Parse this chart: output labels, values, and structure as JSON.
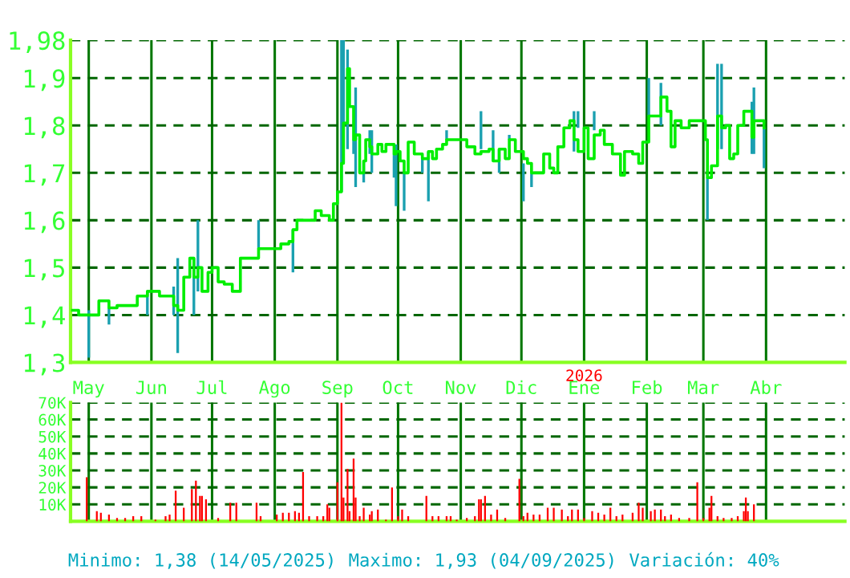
{
  "chart_data": [
    {
      "type": "step",
      "xlim": [
        "2025-04-22",
        "2026-05-10"
      ],
      "ylim": [
        1.3,
        1.98
      ],
      "grid": true,
      "marker": "none",
      "xticks": [
        {
          "value": "2025-05-01",
          "label": "May"
        },
        {
          "value": "2025-06-01",
          "label": "Jun"
        },
        {
          "value": "2025-07-01",
          "label": "Jul"
        },
        {
          "value": "2025-08-01",
          "label": "Ago"
        },
        {
          "value": "2025-09-01",
          "label": "Sep"
        },
        {
          "value": "2025-10-01",
          "label": "Oct"
        },
        {
          "value": "2025-11-01",
          "label": "Nov"
        },
        {
          "value": "2025-12-01",
          "label": "Dic"
        },
        {
          "value": "2026-01-01",
          "label": "Ene"
        },
        {
          "value": "2026-02-01",
          "label": "Feb"
        },
        {
          "value": "2026-03-01",
          "label": "Mar"
        },
        {
          "value": "2026-04-01",
          "label": "Abr"
        }
      ],
      "yticks": [
        {
          "value": 1.3,
          "label": "1,3"
        },
        {
          "value": 1.4,
          "label": "1,4"
        },
        {
          "value": 1.5,
          "label": "1,5"
        },
        {
          "value": 1.6,
          "label": "1,6"
        },
        {
          "value": 1.7,
          "label": "1,7"
        },
        {
          "value": 1.8,
          "label": "1,8"
        },
        {
          "value": 1.9,
          "label": "1,9"
        },
        {
          "value": 1.98,
          "label": "1,98"
        }
      ],
      "annotations": [
        "2026"
      ],
      "x": [
        "2025-04-23",
        "2025-04-26",
        "2025-05-01",
        "2025-05-06",
        "2025-05-11",
        "2025-05-15",
        "2025-05-18",
        "2025-05-23",
        "2025-05-25",
        "2025-05-30",
        "2025-06-05",
        "2025-06-09",
        "2025-06-12",
        "2025-06-14",
        "2025-06-17",
        "2025-06-20",
        "2025-06-22",
        "2025-06-24",
        "2025-06-26",
        "2025-06-29",
        "2025-07-01",
        "2025-07-04",
        "2025-07-07",
        "2025-07-11",
        "2025-07-15",
        "2025-07-20",
        "2025-07-24",
        "2025-07-30",
        "2025-08-04",
        "2025-08-08",
        "2025-08-10",
        "2025-08-12",
        "2025-08-16",
        "2025-08-21",
        "2025-08-24",
        "2025-08-28",
        "2025-08-30",
        "2025-09-01",
        "2025-09-03",
        "2025-09-04",
        "2025-09-06",
        "2025-09-07",
        "2025-09-09",
        "2025-09-10",
        "2025-09-12",
        "2025-09-14",
        "2025-09-15",
        "2025-09-17",
        "2025-09-18",
        "2025-09-21",
        "2025-09-23",
        "2025-09-25",
        "2025-09-29",
        "2025-09-30",
        "2025-10-02",
        "2025-10-04",
        "2025-10-06",
        "2025-10-09",
        "2025-10-11",
        "2025-10-13",
        "2025-10-16",
        "2025-10-18",
        "2025-10-20",
        "2025-10-23",
        "2025-10-25",
        "2025-10-27",
        "2025-10-30",
        "2025-10-31",
        "2025-11-04",
        "2025-11-08",
        "2025-11-11",
        "2025-11-15",
        "2025-11-17",
        "2025-11-20",
        "2025-11-23",
        "2025-11-25",
        "2025-11-28",
        "2025-12-02",
        "2025-12-04",
        "2025-12-06",
        "2025-12-09",
        "2025-12-12",
        "2025-12-15",
        "2025-12-17",
        "2025-12-19",
        "2025-12-22",
        "2025-12-25",
        "2025-12-27",
        "2025-12-29",
        "2026-01-01",
        "2026-01-03",
        "2026-01-06",
        "2026-01-09",
        "2026-01-11",
        "2026-01-15",
        "2026-01-19",
        "2026-01-21",
        "2026-01-25",
        "2026-01-28",
        "2026-01-30",
        "2026-02-02",
        "2026-02-05",
        "2026-02-08",
        "2026-02-11",
        "2026-02-13",
        "2026-02-15",
        "2026-02-18",
        "2026-02-22",
        "2026-02-26",
        "2026-03-01",
        "2026-03-02",
        "2026-03-03",
        "2026-03-05",
        "2026-03-08",
        "2026-03-10",
        "2026-03-12",
        "2026-03-14",
        "2026-03-16",
        "2026-03-18",
        "2026-03-21",
        "2026-03-23",
        "2026-03-25",
        "2026-03-26",
        "2026-03-29",
        "2026-03-31"
      ],
      "series": [
        {
          "color": "#00ee00",
          "values": [
            1.41,
            1.4,
            1.4,
            1.43,
            1.415,
            1.42,
            1.42,
            1.42,
            1.44,
            1.45,
            1.44,
            1.44,
            1.42,
            1.41,
            1.48,
            1.52,
            1.48,
            1.5,
            1.45,
            1.49,
            1.5,
            1.47,
            1.465,
            1.45,
            1.52,
            1.52,
            1.54,
            1.54,
            1.55,
            1.555,
            1.58,
            1.6,
            1.6,
            1.62,
            1.61,
            1.6,
            1.635,
            1.66,
            1.72,
            1.805,
            1.92,
            1.84,
            1.77,
            1.78,
            1.7,
            1.725,
            1.77,
            1.755,
            1.74,
            1.76,
            1.745,
            1.76,
            1.74,
            1.745,
            1.725,
            1.7,
            1.765,
            1.74,
            1.74,
            1.73,
            1.745,
            1.73,
            1.75,
            1.76,
            1.77,
            1.77,
            1.77,
            1.77,
            1.755,
            1.74,
            1.745,
            1.75,
            1.725,
            1.75,
            1.73,
            1.77,
            1.745,
            1.73,
            1.72,
            1.7,
            1.7,
            1.74,
            1.71,
            1.7,
            1.755,
            1.795,
            1.81,
            1.77,
            1.745,
            1.795,
            1.73,
            1.78,
            1.79,
            1.76,
            1.74,
            1.695,
            1.745,
            1.74,
            1.72,
            1.765,
            1.82,
            1.82,
            1.86,
            1.83,
            1.755,
            1.81,
            1.795,
            1.81,
            1.81,
            1.81,
            1.77,
            1.69,
            1.715,
            1.82,
            1.795,
            1.8,
            1.73,
            1.74,
            1.8,
            1.83,
            1.83,
            1.775,
            1.81,
            1.81,
            1.795
          ],
          "errors": [
            null,
            null,
            [
              1.31,
              1.41
            ],
            null,
            [
              1.38,
              1.415
            ],
            null,
            null,
            null,
            null,
            [
              1.4,
              1.45
            ],
            null,
            null,
            [
              1.4,
              1.46
            ],
            [
              1.32,
              1.52
            ],
            null,
            null,
            [
              1.4,
              1.52
            ],
            [
              1.45,
              1.6
            ],
            null,
            null,
            null,
            null,
            null,
            null,
            null,
            null,
            [
              1.54,
              1.6
            ],
            null,
            null,
            null,
            [
              1.49,
              1.58
            ],
            null,
            null,
            null,
            null,
            null,
            null,
            null,
            [
              1.66,
              1.98
            ],
            [
              1.72,
              1.98
            ],
            [
              1.75,
              1.96
            ],
            null,
            [
              1.74,
              1.77
            ],
            [
              1.67,
              1.88
            ],
            null,
            [
              1.68,
              1.725
            ],
            null,
            [
              1.74,
              1.79
            ],
            [
              1.7,
              1.79
            ],
            null,
            null,
            null,
            [
              1.69,
              1.74
            ],
            [
              1.63,
              1.76
            ],
            null,
            [
              1.62,
              1.7
            ],
            null,
            null,
            null,
            [
              1.7,
              1.73
            ],
            [
              1.64,
              1.745
            ],
            null,
            null,
            null,
            [
              1.77,
              1.79
            ],
            null,
            null,
            null,
            null,
            null,
            [
              1.75,
              1.83
            ],
            null,
            [
              1.725,
              1.79
            ],
            [
              1.7,
              1.75
            ],
            null,
            [
              1.77,
              1.78
            ],
            null,
            [
              1.64,
              1.72
            ],
            null,
            [
              1.67,
              1.7
            ],
            null,
            null,
            null,
            null,
            null,
            null,
            null,
            [
              1.745,
              1.83
            ],
            [
              1.795,
              1.83
            ],
            null,
            null,
            [
              1.79,
              1.83
            ],
            null,
            null,
            null,
            null,
            null,
            null,
            null,
            null,
            [
              1.82,
              1.9
            ],
            null,
            [
              1.8,
              1.89
            ],
            null,
            null,
            null,
            null,
            null,
            null,
            null,
            null,
            [
              1.6,
              1.69
            ],
            null,
            [
              1.75,
              1.93
            ],
            [
              1.75,
              1.93
            ],
            null,
            null,
            null,
            null,
            null,
            null,
            [
              1.74,
              1.85
            ],
            [
              1.74,
              1.88
            ],
            null,
            [
              1.71,
              1.795
            ]
          ]
        }
      ]
    },
    {
      "type": "bar",
      "xlim": [
        "2025-04-22",
        "2026-05-10"
      ],
      "ylim": [
        0,
        70000
      ],
      "grid": true,
      "tick_labels": "y",
      "xticks": [
        {
          "value": "2025-05-01",
          "label": null
        },
        {
          "value": "2025-06-01",
          "label": null
        },
        {
          "value": "2025-07-01",
          "label": null
        },
        {
          "value": "2025-08-01",
          "label": null
        },
        {
          "value": "2025-09-01",
          "label": null
        },
        {
          "value": "2025-10-01",
          "label": null
        },
        {
          "value": "2025-11-01",
          "label": null
        },
        {
          "value": "2025-12-01",
          "label": null
        },
        {
          "value": "2026-01-01",
          "label": null
        },
        {
          "value": "2026-02-01",
          "label": null
        },
        {
          "value": "2026-03-01",
          "label": null
        },
        {
          "value": "2026-04-01",
          "label": null
        }
      ],
      "yticks": [
        {
          "value": 10000,
          "label": "10K"
        },
        {
          "value": 20000,
          "label": "20K"
        },
        {
          "value": 30000,
          "label": "30K"
        },
        {
          "value": 40000,
          "label": "40K"
        },
        {
          "value": 50000,
          "label": "50K"
        },
        {
          "value": 60000,
          "label": "60K"
        },
        {
          "value": 70000,
          "label": "70K"
        }
      ],
      "annotations": [
        "Minimo: 1,38 (14/05/2025)",
        "Maximo: 1,93 (04/09/2025)",
        "Variación: 40%"
      ],
      "x": [
        "2025-04-30",
        "2025-05-05",
        "2025-05-07",
        "2025-05-11",
        "2025-05-15",
        "2025-05-19",
        "2025-05-23",
        "2025-05-27",
        "2025-06-03",
        "2025-06-08",
        "2025-06-10",
        "2025-06-13",
        "2025-06-17",
        "2025-06-21",
        "2025-06-23",
        "2025-06-25",
        "2025-06-26",
        "2025-06-28",
        "2025-07-04",
        "2025-07-10",
        "2025-07-13",
        "2025-07-23",
        "2025-07-25",
        "2025-08-02",
        "2025-08-05",
        "2025-08-08",
        "2025-08-11",
        "2025-08-13",
        "2025-08-15",
        "2025-08-18",
        "2025-08-22",
        "2025-08-25",
        "2025-08-27",
        "2025-08-28",
        "2025-09-01",
        "2025-09-03",
        "2025-09-04",
        "2025-09-06",
        "2025-09-07",
        "2025-09-09",
        "2025-09-10",
        "2025-09-12",
        "2025-09-14",
        "2025-09-17",
        "2025-09-18",
        "2025-09-21",
        "2025-09-25",
        "2025-09-28",
        "2025-10-01",
        "2025-10-03",
        "2025-10-06",
        "2025-10-15",
        "2025-10-18",
        "2025-10-21",
        "2025-10-25",
        "2025-10-27",
        "2025-10-30",
        "2025-11-04",
        "2025-11-08",
        "2025-11-10",
        "2025-11-11",
        "2025-11-13",
        "2025-11-16",
        "2025-11-19",
        "2025-11-23",
        "2025-11-30",
        "2025-12-02",
        "2025-12-04",
        "2025-12-07",
        "2025-12-10",
        "2025-12-14",
        "2025-12-17",
        "2025-12-21",
        "2025-12-24",
        "2025-12-26",
        "2025-12-29",
        "2026-01-01",
        "2026-01-05",
        "2026-01-08",
        "2026-01-11",
        "2026-01-14",
        "2026-01-17",
        "2026-01-20",
        "2026-01-25",
        "2026-01-28",
        "2026-01-30",
        "2026-02-03",
        "2026-02-05",
        "2026-02-08",
        "2026-02-10",
        "2026-02-13",
        "2026-02-17",
        "2026-02-22",
        "2026-02-26",
        "2026-03-01",
        "2026-03-04",
        "2026-03-05",
        "2026-03-08",
        "2026-03-11",
        "2026-03-15",
        "2026-03-18",
        "2026-03-21",
        "2026-03-22",
        "2026-03-23",
        "2026-03-26"
      ],
      "series": [
        {
          "color": "#ff0000",
          "values": [
            26000,
            6000,
            5000,
            4000,
            2000,
            2000,
            3000,
            3000,
            1000,
            3000,
            4000,
            18000,
            8000,
            19000,
            24000,
            15000,
            15000,
            13000,
            2000,
            11000,
            11000,
            11000,
            3000,
            4000,
            5000,
            5000,
            6000,
            5000,
            29000,
            3000,
            3000,
            3000,
            10000,
            8000,
            23000,
            70000,
            14000,
            31000,
            6000,
            37000,
            14000,
            3000,
            8000,
            4000,
            6000,
            7000,
            1000,
            20000,
            3000,
            7000,
            3000,
            15000,
            3000,
            3000,
            3000,
            3000,
            1000,
            2000,
            3000,
            13000,
            13000,
            15000,
            4000,
            7000,
            2000,
            25000,
            3000,
            5000,
            4000,
            4000,
            8000,
            8000,
            7000,
            3000,
            7000,
            7000,
            2000,
            6000,
            5000,
            4000,
            8000,
            3000,
            4000,
            5000,
            11000,
            8000,
            6000,
            7000,
            7000,
            3000,
            4000,
            2000,
            2000,
            23000,
            2000,
            8000,
            15000,
            3000,
            2000,
            2000,
            3000,
            6000,
            14000,
            6000,
            10000
          ]
        }
      ]
    }
  ]
}
